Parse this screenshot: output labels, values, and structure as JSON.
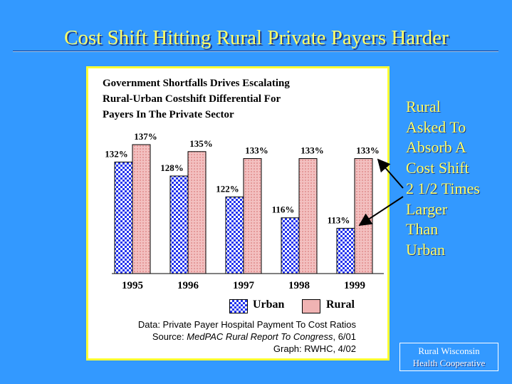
{
  "slide_title": "Cost Shift Hitting Rural Private Payers Harder",
  "callout": "Rural\nAsked To\nAbsorb A\nCost Shift\n2 1/2 Times\nLarger\nThan\nUrban",
  "logo": {
    "line1": "Rural Wisconsin",
    "line2": "Health Cooperative"
  },
  "notes": {
    "data": "Data: Private Payer Hospital Payment To Cost Ratios",
    "source_prefix": "Source: ",
    "source_italic": "MedPAC Rural Report To Congress",
    "source_suffix": ", 6/01",
    "graph": "Graph: RWHC, 4/02"
  },
  "colors": {
    "background": "#3399ff",
    "title": "#ffff66",
    "urban": "#2233ee",
    "rural": "#f0b3b3",
    "chart_border": "#ffff33"
  },
  "chart_data": {
    "type": "bar",
    "title": "Government Shortfalls Drives Escalating\nRural-Urban Costshift Differential For\nPayers In The Private Sector",
    "categories": [
      "1995",
      "1996",
      "1997",
      "1998",
      "1999"
    ],
    "series": [
      {
        "name": "Urban",
        "values": [
          132,
          128,
          122,
          116,
          113
        ],
        "labels": [
          "132%",
          "128%",
          "122%",
          "116%",
          "113%"
        ]
      },
      {
        "name": "Rural",
        "values": [
          137,
          135,
          133,
          133,
          133
        ],
        "labels": [
          "137%",
          "135%",
          "133%",
          "133%",
          "133%"
        ]
      }
    ],
    "ylim": [
      100,
      137
    ],
    "grid": false,
    "legend": "bottom"
  }
}
